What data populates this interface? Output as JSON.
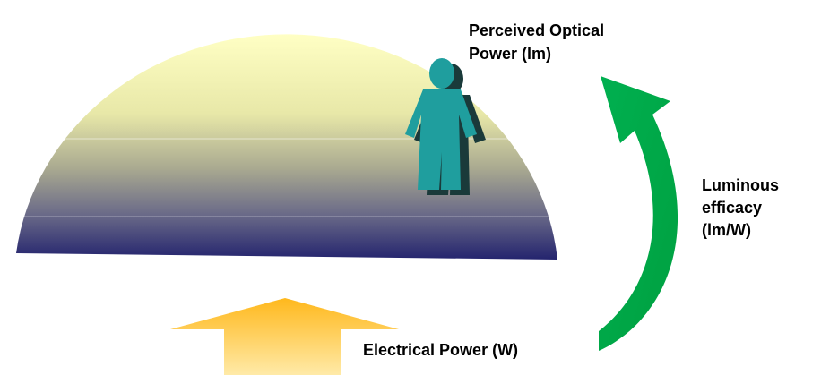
{
  "labels": [
    {
      "lines": [
        "Perceived Optical",
        "Power (lm)"
      ]
    },
    {
      "lines": [
        "Luminous",
        "efficacy",
        "(lm/W)"
      ]
    },
    {
      "lines": [
        "Electrical Power (W)"
      ]
    }
  ]
}
